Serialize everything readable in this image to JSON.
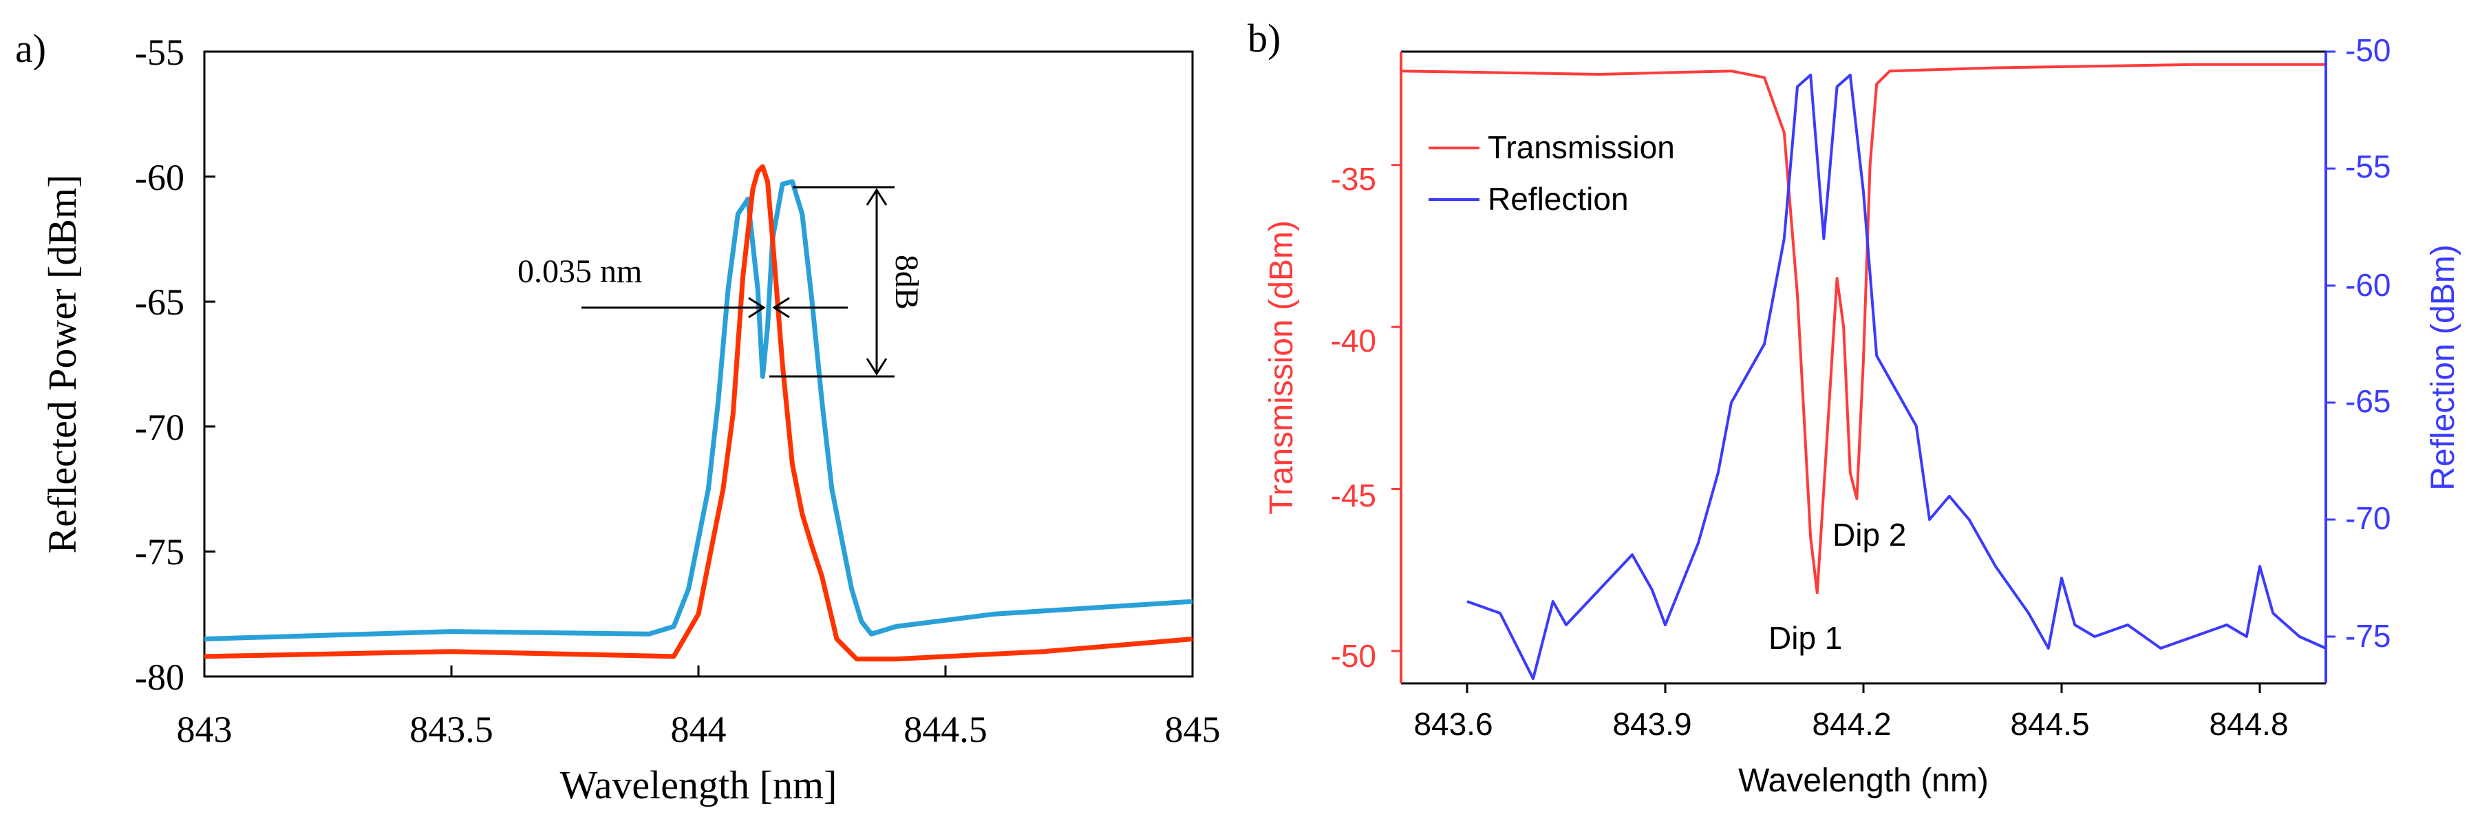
{
  "colors": {
    "a_series_1": "#2aa0d8",
    "a_series_2": "#ff3300",
    "b_transmission": "#ff3b3b",
    "b_reflection": "#3b3bff",
    "axis": "#000000"
  },
  "chart_data": [
    {
      "panel": "a)",
      "type": "line",
      "title": "",
      "xlabel": "Wavelength [nm]",
      "ylabel": "Reflected Power [dBm]",
      "xlim": [
        843,
        845
      ],
      "ylim": [
        -80,
        -55
      ],
      "xticks": [
        "843",
        "843.5",
        "844",
        "844.5",
        "845"
      ],
      "yticks": [
        "-55",
        "-60",
        "-65",
        "-70",
        "-75",
        "-80"
      ],
      "grid": false,
      "annotations": {
        "width": "0.035 nm",
        "depth": "8dB"
      },
      "series": [
        {
          "name": "blue",
          "color": "#2aa0d8",
          "x": [
            843.0,
            843.5,
            843.9,
            843.95,
            843.98,
            844.0,
            844.02,
            844.04,
            844.06,
            844.08,
            844.1,
            844.12,
            844.13,
            844.14,
            844.15,
            844.17,
            844.19,
            844.21,
            844.23,
            844.25,
            844.27,
            844.29,
            844.31,
            844.33,
            844.35,
            844.4,
            844.6,
            845.0
          ],
          "y": [
            -78.5,
            -78.2,
            -78.3,
            -78,
            -76.5,
            -74.5,
            -72.5,
            -69,
            -64.5,
            -61.5,
            -60.9,
            -64.5,
            -68,
            -66,
            -62.5,
            -60.3,
            -60.2,
            -61.5,
            -65,
            -69,
            -72.5,
            -74.5,
            -76.5,
            -77.8,
            -78.3,
            -78,
            -77.5,
            -77
          ]
        },
        {
          "name": "red",
          "color": "#ff3300",
          "x": [
            843.0,
            843.5,
            843.95,
            844.0,
            844.03,
            844.05,
            844.07,
            844.09,
            844.11,
            844.12,
            844.13,
            844.14,
            844.15,
            844.17,
            844.19,
            844.21,
            844.23,
            844.25,
            844.28,
            844.32,
            844.4,
            844.7,
            845.0
          ],
          "y": [
            -79.2,
            -79.0,
            -79.2,
            -77.5,
            -74.5,
            -72.5,
            -69.5,
            -64,
            -60.5,
            -59.8,
            -59.6,
            -60.2,
            -62.5,
            -67.5,
            -71.5,
            -73.5,
            -74.8,
            -76,
            -78.5,
            -79.3,
            -79.3,
            -79,
            -78.5
          ]
        }
      ]
    },
    {
      "panel": "b)",
      "type": "line",
      "title": "",
      "xlabel": "Wavelength (nm)",
      "ylabel": "Transmission (dBm)",
      "ylabel_right": "Reflection (dBm)",
      "xlim": [
        843.5,
        844.9
      ],
      "ylim": [
        -51,
        -31.5
      ],
      "ylim_right": [
        -77,
        -50
      ],
      "xticks": [
        "843.6",
        "843.9",
        "844.2",
        "844.5",
        "844.8"
      ],
      "yticks": [
        "-35",
        "-40",
        "-45",
        "-50"
      ],
      "yticks_right": [
        "-50",
        "-55",
        "-60",
        "-65",
        "-70",
        "-75"
      ],
      "legend": [
        "Transmission",
        "Reflection"
      ],
      "legend_position": "top-left",
      "annotations": {
        "dip1": "Dip 1",
        "dip2": "Dip 2"
      },
      "series": [
        {
          "name": "Transmission",
          "axis": "left",
          "color": "#ff3b3b",
          "x": [
            843.5,
            843.8,
            844.0,
            844.05,
            844.08,
            844.1,
            844.12,
            844.13,
            844.14,
            844.16,
            844.17,
            844.18,
            844.19,
            844.2,
            844.21,
            844.22,
            844.24,
            844.4,
            844.7,
            844.9
          ],
          "y": [
            -32.1,
            -32.2,
            -32.1,
            -32.3,
            -34,
            -39,
            -46.5,
            -48.2,
            -45,
            -38.5,
            -40,
            -44.5,
            -45.3,
            -41,
            -35,
            -32.5,
            -32.1,
            -32.0,
            -31.9,
            -31.9
          ]
        },
        {
          "name": "Reflection",
          "axis": "right",
          "color": "#3b3bff",
          "x": [
            843.6,
            843.65,
            843.7,
            843.73,
            843.75,
            843.8,
            843.85,
            843.88,
            843.9,
            843.95,
            843.98,
            844.0,
            844.03,
            844.05,
            844.08,
            844.1,
            844.12,
            844.14,
            844.16,
            844.18,
            844.2,
            844.22,
            844.25,
            844.28,
            844.3,
            844.33,
            844.36,
            844.4,
            844.45,
            844.48,
            844.5,
            844.52,
            844.55,
            844.6,
            844.65,
            844.7,
            844.75,
            844.78,
            844.8,
            844.82,
            844.86,
            844.9
          ],
          "y": [
            -73.5,
            -74,
            -76.8,
            -73.5,
            -74.5,
            -73,
            -71.5,
            -73,
            -74.5,
            -71,
            -68,
            -65,
            -63.5,
            -62.5,
            -58,
            -51.5,
            -51,
            -58,
            -51.5,
            -51,
            -56,
            -63,
            -64.5,
            -66,
            -70,
            -69,
            -70,
            -72,
            -74,
            -75.5,
            -72.5,
            -74.5,
            -75,
            -74.5,
            -75.5,
            -75,
            -74.5,
            -75,
            -72,
            -74,
            -75,
            -75.5
          ]
        }
      ]
    }
  ]
}
